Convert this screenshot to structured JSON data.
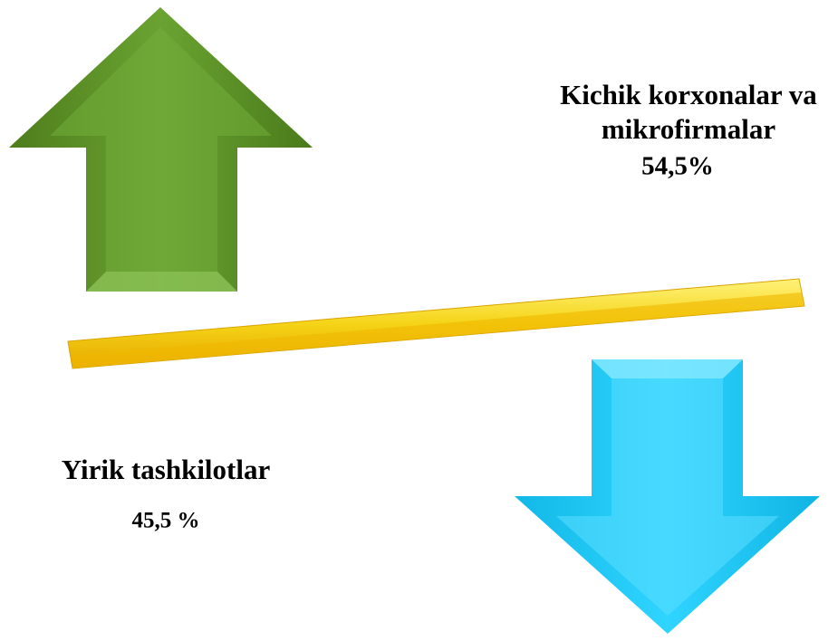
{
  "upper_label": {
    "lines": [
      "Kichik korxonalar va",
      "mikrofirmalar"
    ],
    "value": "54,5%"
  },
  "lower_label": {
    "lines": [
      "Yirik tashkilotlar"
    ],
    "value": "45,5 %"
  }
}
